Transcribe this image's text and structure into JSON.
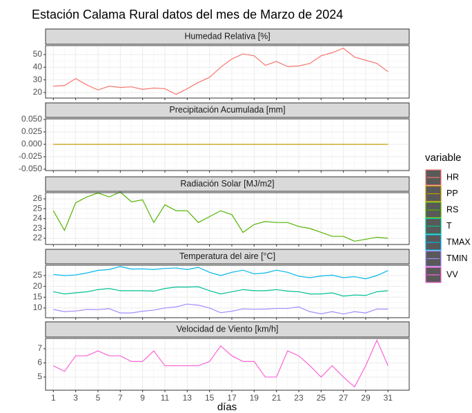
{
  "title": "Estación Calama Rural datos del mes de Marzo de 2024",
  "x_label": "días",
  "legend_title": "variable",
  "chart_data": [
    {
      "type": "line",
      "title": "Humedad Relativa [%]",
      "x": [
        1,
        2,
        3,
        4,
        5,
        6,
        7,
        8,
        9,
        10,
        11,
        12,
        13,
        14,
        15,
        16,
        17,
        18,
        19,
        20,
        21,
        22,
        23,
        24,
        25,
        26,
        27,
        28,
        29,
        30,
        31
      ],
      "series": [
        {
          "name": "HR",
          "color": "#F8766D",
          "values": [
            25,
            25.5,
            31,
            26,
            22,
            25,
            24,
            24.5,
            22.5,
            23.5,
            23,
            18.5,
            23,
            28,
            32,
            40,
            46.5,
            50.5,
            49,
            41.5,
            44.5,
            40.5,
            41,
            43,
            49,
            51.5,
            55,
            48,
            45.5,
            43,
            36.5
          ]
        }
      ],
      "xlim": [
        0.3,
        32.9
      ],
      "xticks": [
        1,
        3,
        5,
        7,
        9,
        11,
        13,
        15,
        17,
        19,
        21,
        23,
        25,
        27,
        29,
        31
      ],
      "ylim": [
        15.6,
        57.1
      ],
      "yticks": [
        20,
        30,
        40,
        50
      ]
    },
    {
      "type": "line",
      "title": "Precipitación Acumulada [mm]",
      "x": [
        1,
        2,
        3,
        4,
        5,
        6,
        7,
        8,
        9,
        10,
        11,
        12,
        13,
        14,
        15,
        16,
        17,
        18,
        19,
        20,
        21,
        22,
        23,
        24,
        25,
        26,
        27,
        28,
        29,
        30,
        31
      ],
      "series": [
        {
          "name": "PP",
          "color": "#C49A00",
          "values": [
            0,
            0,
            0,
            0,
            0,
            0,
            0,
            0,
            0,
            0,
            0,
            0,
            0,
            0,
            0,
            0,
            0,
            0,
            0,
            0,
            0,
            0,
            0,
            0,
            0,
            0,
            0,
            0,
            0,
            0,
            0
          ]
        }
      ],
      "xlim": [
        0.3,
        32.9
      ],
      "xticks": [
        1,
        3,
        5,
        7,
        9,
        11,
        13,
        15,
        17,
        19,
        21,
        23,
        25,
        27,
        29,
        31
      ],
      "ylim": [
        -0.0528,
        0.0514
      ],
      "yticks": [
        {
          "value": -0.05,
          "label": "-0.050"
        },
        {
          "value": -0.025,
          "label": "-0.025"
        },
        {
          "value": 0,
          "label": "0.000"
        },
        {
          "value": 0.025,
          "label": "0.025"
        },
        {
          "value": 0.05,
          "label": "0.050"
        }
      ]
    },
    {
      "type": "line",
      "title": "Radiación Solar [MJ/m2]",
      "x": [
        1,
        2,
        3,
        4,
        5,
        6,
        7,
        8,
        9,
        10,
        11,
        12,
        13,
        14,
        15,
        16,
        17,
        18,
        19,
        20,
        21,
        22,
        23,
        24,
        25,
        26,
        27,
        28,
        29,
        30,
        31
      ],
      "series": [
        {
          "name": "RS",
          "color": "#53B400",
          "values": [
            24.8,
            22.8,
            25.6,
            26.2,
            26.6,
            26.2,
            26.7,
            25.7,
            25.9,
            23.6,
            25.4,
            24.8,
            24.8,
            23.6,
            24.2,
            24.8,
            24.4,
            22.6,
            23.4,
            23.7,
            23.6,
            23.6,
            23.2,
            23,
            22.6,
            22.2,
            22.2,
            21.7,
            21.9,
            22.1,
            22
          ]
        }
      ],
      "xlim": [
        0.3,
        32.9
      ],
      "xticks": [
        1,
        3,
        5,
        7,
        9,
        11,
        13,
        15,
        17,
        19,
        21,
        23,
        25,
        27,
        29,
        31
      ],
      "ylim": [
        21.37,
        26.63
      ],
      "yticks": [
        22,
        23,
        24,
        25,
        26
      ]
    },
    {
      "type": "line",
      "title": "Temperatura del aire [°C]",
      "x": [
        1,
        2,
        3,
        4,
        5,
        6,
        7,
        8,
        9,
        10,
        11,
        12,
        13,
        14,
        15,
        16,
        17,
        18,
        19,
        20,
        21,
        22,
        23,
        24,
        25,
        26,
        27,
        28,
        29,
        30,
        31
      ],
      "series": [
        {
          "name": "T",
          "color": "#00C094",
          "values": [
            17.5,
            16.5,
            17,
            17.5,
            18.5,
            19,
            18,
            18,
            18,
            17.8,
            19,
            19.7,
            19.7,
            19.8,
            18,
            16.5,
            17.5,
            18.5,
            18,
            18,
            18.5,
            17.8,
            17.5,
            16.5,
            16.5,
            17,
            15.5,
            16,
            15.8,
            17.5,
            18
          ]
        },
        {
          "name": "TMAX",
          "color": "#00B6EB",
          "values": [
            25.5,
            25,
            25.3,
            26.2,
            27.4,
            27.8,
            29.2,
            28,
            28.1,
            27.8,
            28.3,
            28.5,
            27.8,
            28.8,
            26.5,
            25,
            26.5,
            27.5,
            25.8,
            26.2,
            27.5,
            26.5,
            24.7,
            24,
            24.8,
            25.2,
            24,
            24.5,
            23.5,
            25,
            27.3
          ]
        },
        {
          "name": "TMIN",
          "color": "#A58AFF",
          "values": [
            9.3,
            8.3,
            8.6,
            9.3,
            9.2,
            9.7,
            7.7,
            7.7,
            8.5,
            9,
            10,
            10.5,
            11.8,
            11.3,
            10,
            7.8,
            8.5,
            9.6,
            9.4,
            9.5,
            9.8,
            9.8,
            10.5,
            8.3,
            7.3,
            8.3,
            7.2,
            8.3,
            7.7,
            9.5,
            9.5
          ]
        }
      ],
      "xlim": [
        0.3,
        32.9
      ],
      "xticks": [
        1,
        3,
        5,
        7,
        9,
        11,
        13,
        15,
        17,
        19,
        21,
        23,
        25,
        27,
        29,
        31
      ],
      "ylim": [
        5.5,
        29.8
      ],
      "yticks": [
        10,
        15,
        20,
        25
      ]
    },
    {
      "type": "line",
      "title": "Velocidad de Viento [km/h]",
      "x": [
        1,
        2,
        3,
        4,
        5,
        6,
        7,
        8,
        9,
        10,
        11,
        12,
        13,
        14,
        15,
        16,
        17,
        18,
        19,
        20,
        21,
        22,
        23,
        24,
        25,
        26,
        27,
        28,
        29,
        30,
        31
      ],
      "series": [
        {
          "name": "VV",
          "color": "#FB61D7",
          "values": [
            5.8,
            5.4,
            6.5,
            6.5,
            6.85,
            6.5,
            6.5,
            6.1,
            6.1,
            6.85,
            5.8,
            5.8,
            5.8,
            5.8,
            6.1,
            7.2,
            6.5,
            6.1,
            6.1,
            5,
            5,
            6.85,
            6.5,
            5.8,
            5,
            5.8,
            5,
            4.3,
            5.8,
            7.6,
            5.8
          ]
        }
      ],
      "xlim": [
        0.3,
        32.9
      ],
      "xticks": [
        1,
        3,
        5,
        7,
        9,
        11,
        13,
        15,
        17,
        19,
        21,
        23,
        25,
        27,
        29,
        31
      ],
      "ylim": [
        4.07,
        7.73
      ],
      "yticks": [
        5,
        6,
        7
      ]
    }
  ]
}
